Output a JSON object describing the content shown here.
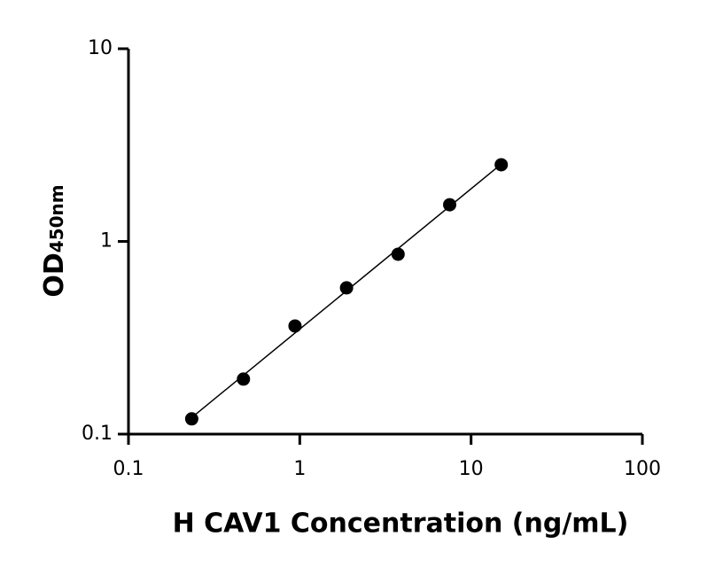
{
  "chart_data": {
    "type": "scatter",
    "x_label": "H CAV1 Concentration (ng/mL)",
    "y_label": {
      "main": "OD",
      "sub": "450nm"
    },
    "x": [
      0.234,
      0.469,
      0.938,
      1.875,
      3.75,
      7.5,
      15
    ],
    "values": [
      0.12,
      0.193,
      0.364,
      0.574,
      0.858,
      1.55,
      2.5
    ],
    "color": "#000000",
    "x_log": true,
    "y_log": true,
    "fit_line": true,
    "xlim": [
      0.1,
      100
    ],
    "ylim": [
      0.1,
      10
    ],
    "xticks": [
      0.1,
      1,
      10,
      100
    ],
    "yticks": [
      0.1,
      1,
      10
    ]
  }
}
